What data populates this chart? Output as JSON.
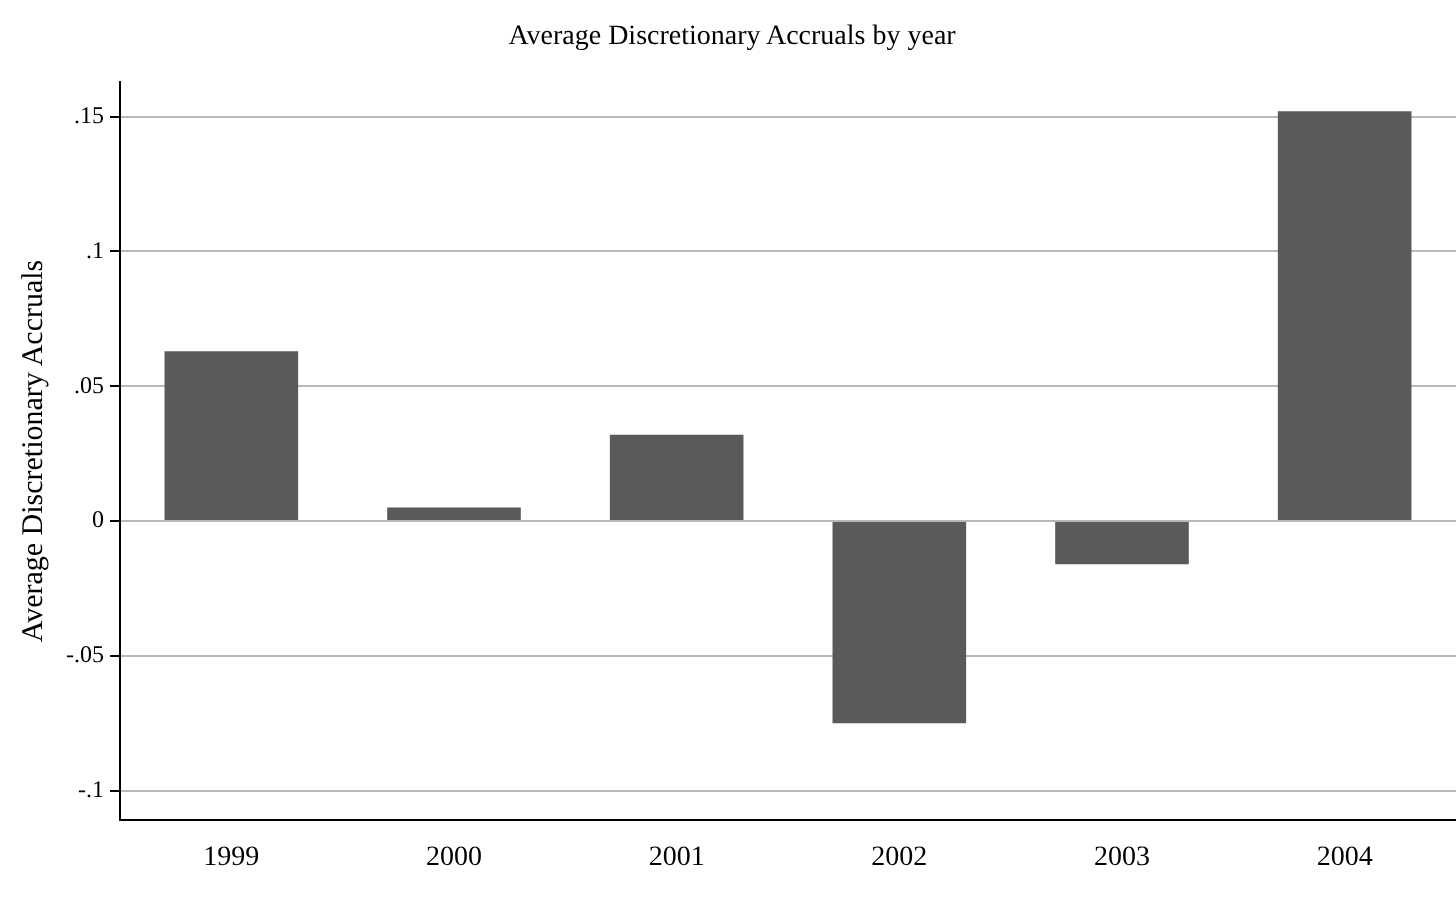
{
  "chart_data": {
    "type": "bar",
    "title": "Average Discretionary Accruals by year",
    "ylabel": "Average Discretionary Accruals",
    "categories": [
      "1999",
      "2000",
      "2001",
      "2002",
      "2003",
      "2004"
    ],
    "values": [
      0.063,
      0.005,
      0.032,
      -0.075,
      -0.016,
      0.152
    ],
    "color": "#5a5a5a",
    "ylim": [
      -0.111,
      0.163
    ],
    "yticks": [
      {
        "value": -0.1,
        "label": "-.1"
      },
      {
        "value": -0.05,
        "label": "-.05"
      },
      0,
      {
        "value": 0.05,
        "label": ".05"
      },
      {
        "value": 0.1,
        "label": ".1"
      },
      {
        "value": 0.15,
        "label": ".15"
      }
    ],
    "grid": "y"
  }
}
